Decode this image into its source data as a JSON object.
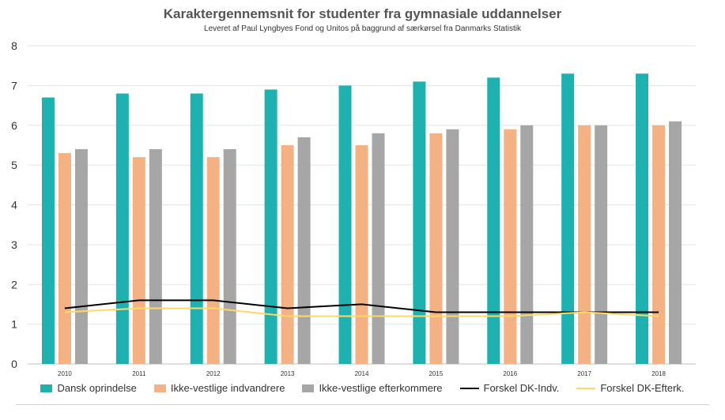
{
  "chart_data": {
    "type": "bar",
    "title": "Karaktergennemsnit for studenter fra gymnasiale uddannelser",
    "subtitle": "Leveret af Paul Lyngbyes Fond og Unitos på baggrund af særkørsel fra Danmarks Statistik",
    "categories": [
      "2010",
      "2011",
      "2012",
      "2013",
      "2014",
      "2015",
      "2016",
      "2017",
      "2018"
    ],
    "ylim": [
      0,
      8
    ],
    "yticks": [
      "0",
      "1",
      "2",
      "3",
      "4",
      "5",
      "6",
      "7",
      "8"
    ],
    "grid": true,
    "legend_position": "bottom",
    "series": [
      {
        "name": "Dansk oprindelse",
        "kind": "bar",
        "color": "#1fb0b0",
        "values": [
          6.7,
          6.8,
          6.8,
          6.9,
          7.0,
          7.1,
          7.2,
          7.3,
          7.3
        ]
      },
      {
        "name": "Ikke-vestlige indvandrere",
        "kind": "bar",
        "color": "#f4b183",
        "values": [
          5.3,
          5.2,
          5.2,
          5.5,
          5.5,
          5.8,
          5.9,
          6.0,
          6.0
        ]
      },
      {
        "name": "Ikke-vestlige efterkommere",
        "kind": "bar",
        "color": "#a6a6a6",
        "values": [
          5.4,
          5.4,
          5.4,
          5.7,
          5.8,
          5.9,
          6.0,
          6.0,
          6.1
        ]
      },
      {
        "name": "Forskel DK-Indv.",
        "kind": "line",
        "color": "#000000",
        "values": [
          1.4,
          1.6,
          1.6,
          1.4,
          1.5,
          1.3,
          1.3,
          1.3,
          1.3
        ]
      },
      {
        "name": "Forskel DK-Efterk.",
        "kind": "line",
        "color": "#ffd966",
        "values": [
          1.3,
          1.4,
          1.4,
          1.2,
          1.2,
          1.2,
          1.2,
          1.3,
          1.2
        ]
      }
    ]
  }
}
